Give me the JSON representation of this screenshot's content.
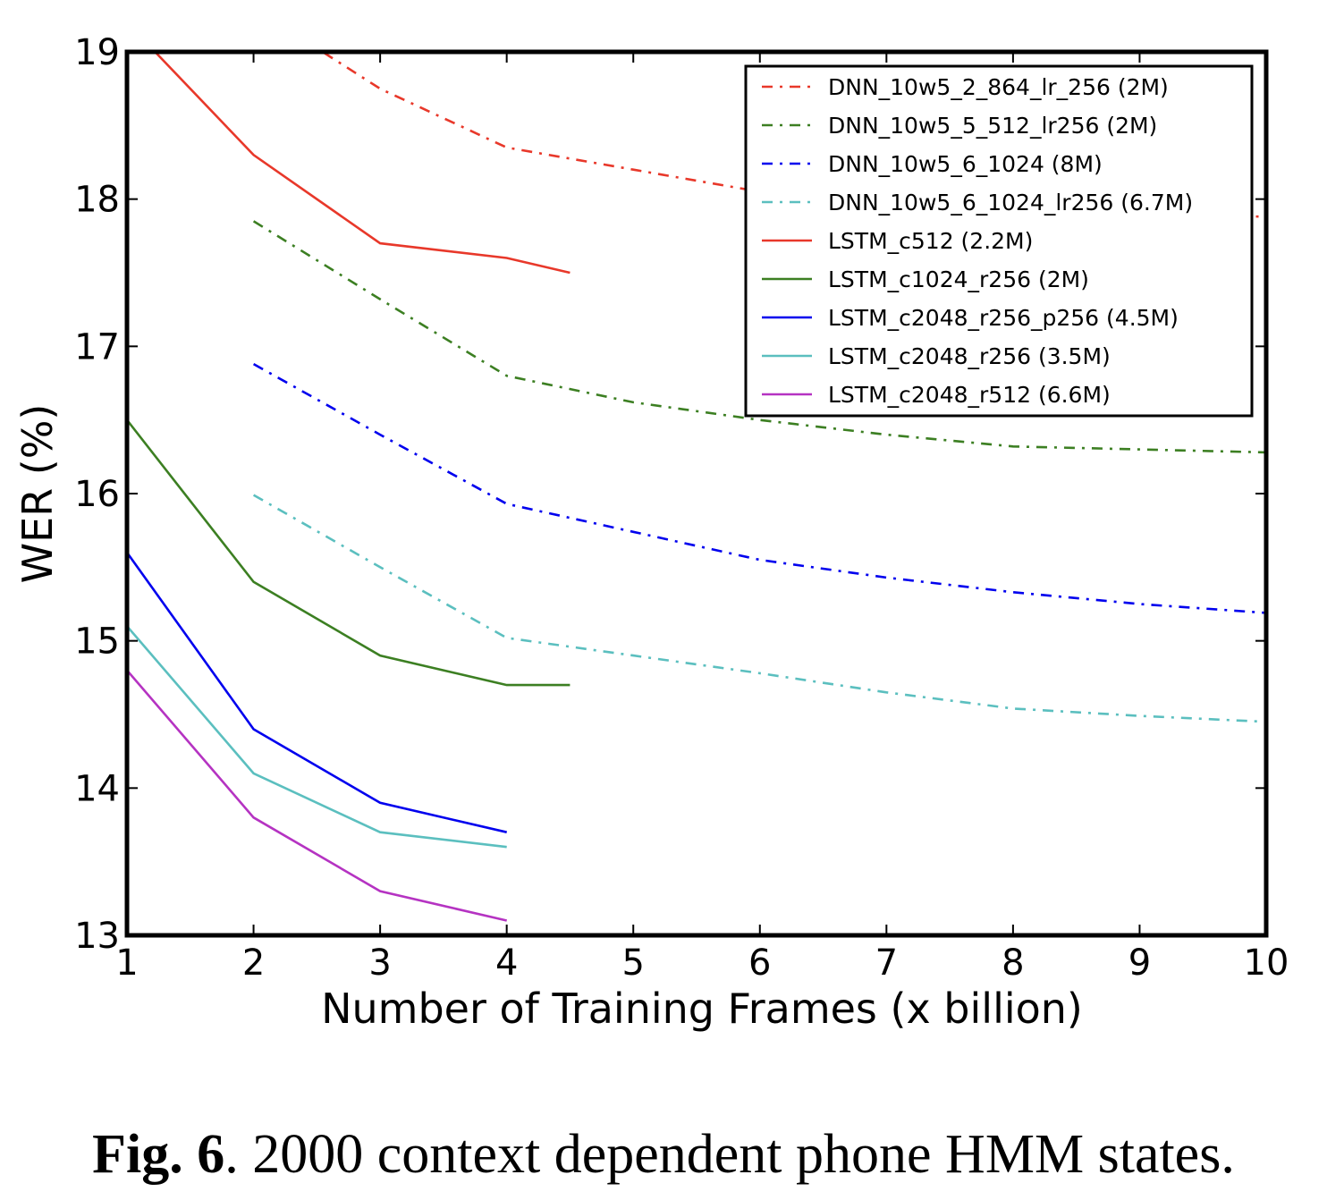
{
  "chart_data": {
    "type": "line",
    "xlabel": "Number of Training Frames (x billion)",
    "ylabel": "WER (%)",
    "xlim": [
      1,
      10
    ],
    "ylim": [
      13,
      19
    ],
    "xticks": [
      "1",
      "2",
      "3",
      "4",
      "5",
      "6",
      "7",
      "8",
      "9",
      "10"
    ],
    "yticks": [
      "13",
      "14",
      "15",
      "16",
      "17",
      "18",
      "19"
    ],
    "grid": false,
    "legend_position": "top-right",
    "series": [
      {
        "name": "DNN_10w5_2_864_lr_256 (2M)",
        "color": "#e8382a",
        "style": "dashdot",
        "x": [
          2,
          3,
          4,
          5,
          6,
          7,
          8,
          9,
          10
        ],
        "y": [
          19.3,
          18.75,
          18.35,
          18.2,
          18.05,
          18.0,
          17.95,
          17.9,
          17.88
        ]
      },
      {
        "name": "DNN_10w5_5_512_lr256 (2M)",
        "color": "#3c7f22",
        "style": "dashdot",
        "x": [
          2,
          3,
          4,
          5,
          6,
          7,
          8,
          9,
          10
        ],
        "y": [
          17.85,
          17.32,
          16.8,
          16.62,
          16.5,
          16.4,
          16.32,
          16.3,
          16.28
        ]
      },
      {
        "name": "DNN_10w5_6_1024 (8M)",
        "color": "#0000ee",
        "style": "dashdot",
        "x": [
          2,
          3,
          4,
          5,
          6,
          7,
          8,
          9,
          10
        ],
        "y": [
          16.88,
          16.4,
          15.93,
          15.74,
          15.55,
          15.43,
          15.33,
          15.25,
          15.19
        ]
      },
      {
        "name": "DNN_10w5_6_1024_lr256 (6.7M)",
        "color": "#5bbfbf",
        "style": "dashdot",
        "x": [
          2,
          3,
          4,
          5,
          6,
          7,
          8,
          9,
          10
        ],
        "y": [
          15.99,
          15.5,
          15.02,
          14.9,
          14.78,
          14.65,
          14.54,
          14.49,
          14.45
        ]
      },
      {
        "name": "LSTM_c512 (2.2M)",
        "color": "#e8382a",
        "style": "solid",
        "x": [
          1,
          2,
          3,
          4,
          4.5
        ],
        "y": [
          19.2,
          18.3,
          17.7,
          17.6,
          17.5
        ]
      },
      {
        "name": "LSTM_c1024_r256 (2M)",
        "color": "#3c7f22",
        "style": "solid",
        "x": [
          1,
          2,
          3,
          4,
          4.5
        ],
        "y": [
          16.5,
          15.4,
          14.9,
          14.7,
          14.7
        ]
      },
      {
        "name": "LSTM_c2048_r256_p256 (4.5M)",
        "color": "#0000ee",
        "style": "solid",
        "x": [
          1,
          2,
          3,
          4
        ],
        "y": [
          15.6,
          14.4,
          13.9,
          13.7
        ]
      },
      {
        "name": "LSTM_c2048_r256 (3.5M)",
        "color": "#5bbfbf",
        "style": "solid",
        "x": [
          1,
          2,
          3,
          4
        ],
        "y": [
          15.1,
          14.1,
          13.7,
          13.6
        ]
      },
      {
        "name": "LSTM_c2048_r512 (6.6M)",
        "color": "#b533c2",
        "style": "solid",
        "x": [
          1,
          2,
          3,
          4
        ],
        "y": [
          14.8,
          13.8,
          13.3,
          13.1
        ]
      }
    ]
  },
  "caption": {
    "label": "Fig. 6",
    "text": ". 2000 context dependent phone HMM states."
  }
}
